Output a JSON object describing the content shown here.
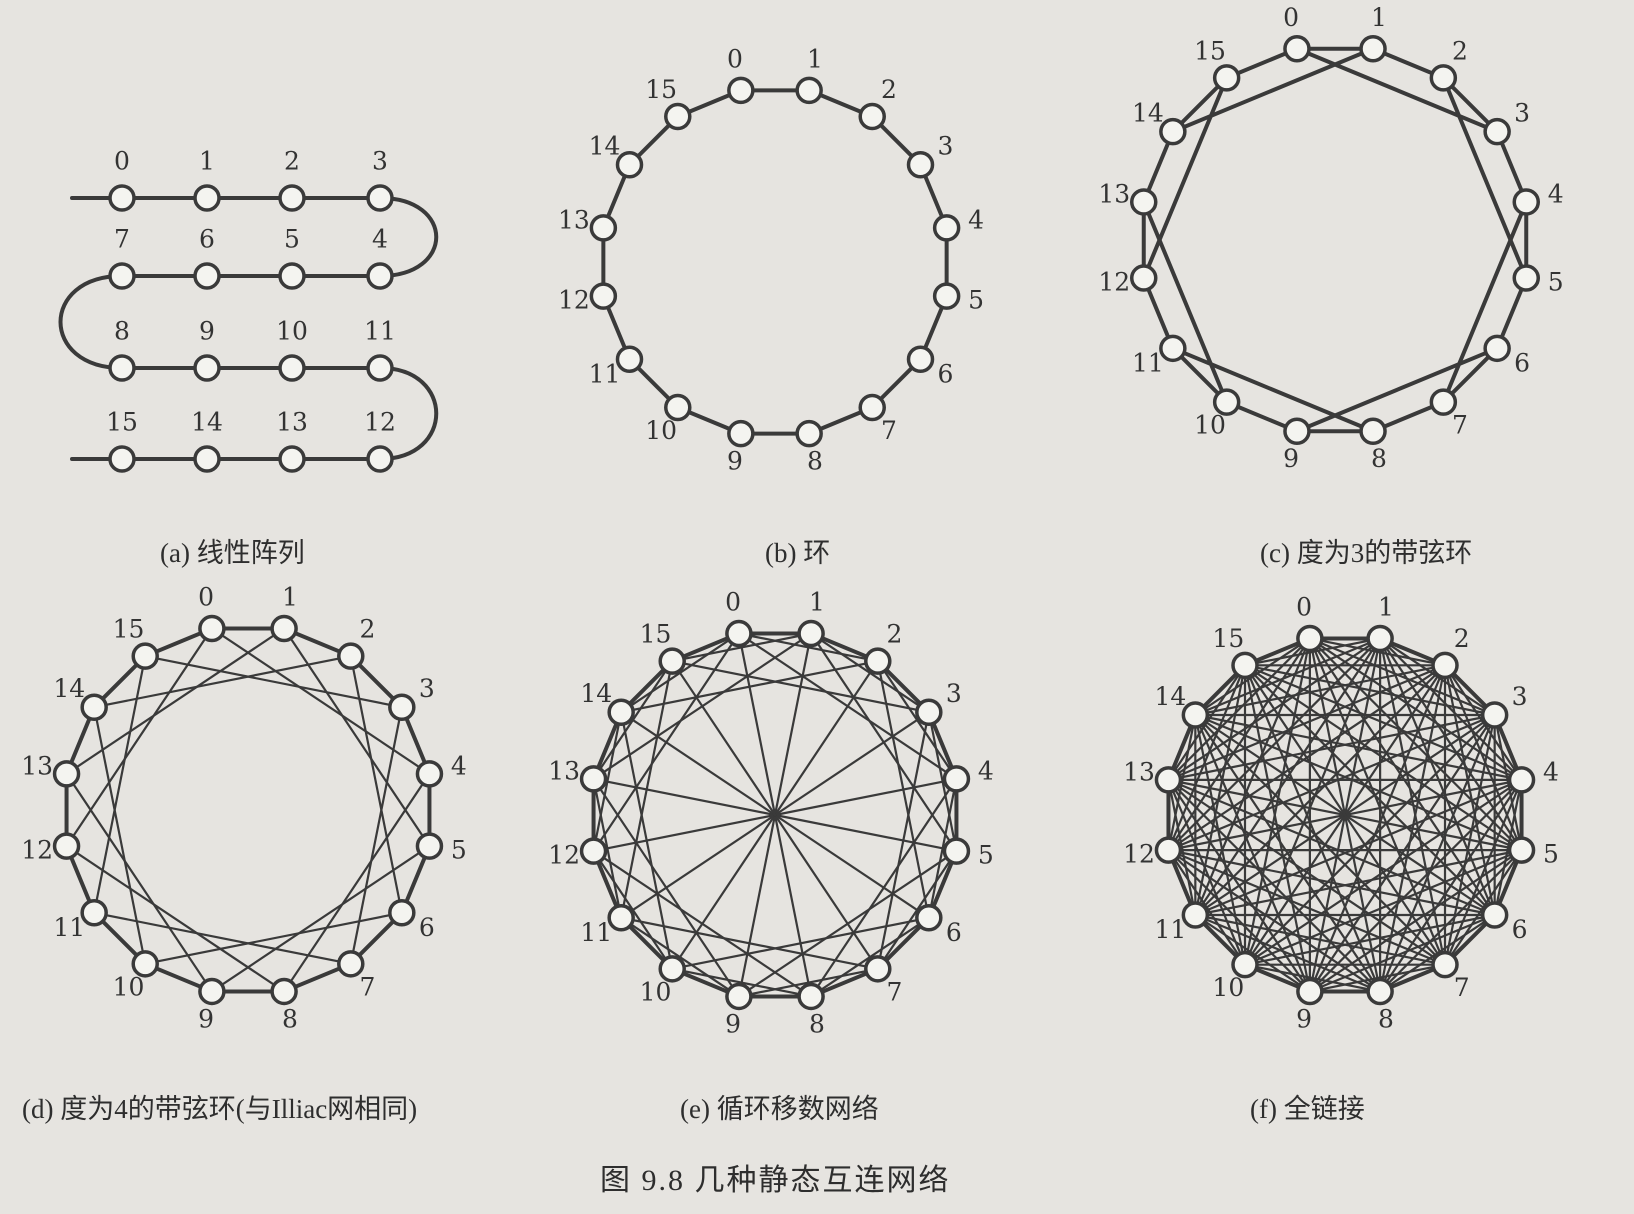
{
  "figure_caption": "图 9.8   几种静态互连网络",
  "node_labels": [
    "0",
    "1",
    "2",
    "3",
    "4",
    "5",
    "6",
    "7",
    "8",
    "9",
    "10",
    "11",
    "12",
    "13",
    "14",
    "15"
  ],
  "panels": [
    {
      "key": "a",
      "caption": "(a) 线性阵列"
    },
    {
      "key": "b",
      "caption": "(b) 环"
    },
    {
      "key": "c",
      "caption": "(c) 度为3的带弦环"
    },
    {
      "key": "d",
      "caption": "(d) 度为4的带弦环(与Illiac网相同)"
    },
    {
      "key": "e",
      "caption": "(e) 循环移数网络"
    },
    {
      "key": "f",
      "caption": "(f) 全链接"
    }
  ]
}
